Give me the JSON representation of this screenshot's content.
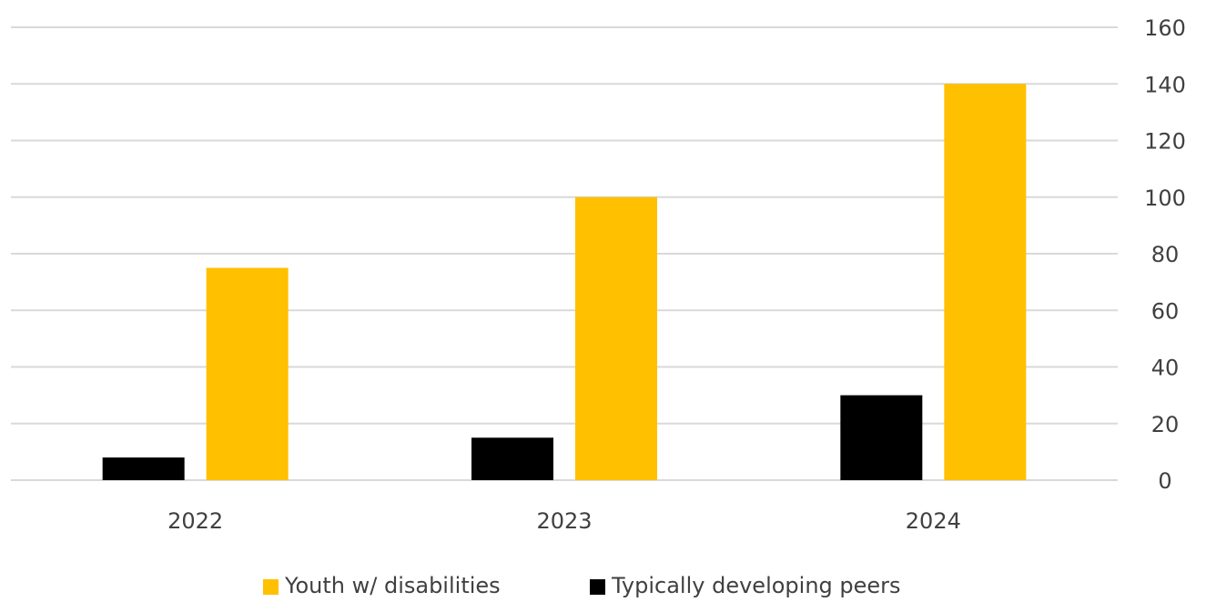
{
  "chart_data": {
    "type": "bar",
    "categories": [
      "2022",
      "2023",
      "2024"
    ],
    "series": [
      {
        "name": "Typically developing peers",
        "values": [
          8,
          15,
          30
        ],
        "color": "#000000"
      },
      {
        "name": "Youth w/ disabilities",
        "values": [
          75,
          100,
          140
        ],
        "color": "#FFC000"
      }
    ],
    "legend_order": [
      "Youth w/ disabilities",
      "Typically developing peers"
    ],
    "ylim": [
      0,
      160
    ],
    "yticks": [
      0,
      20,
      40,
      60,
      80,
      100,
      120,
      140,
      160
    ],
    "y_axis_side": "right",
    "grid": true,
    "grid_color": "#d9d9d9",
    "legend_position": "bottom-center",
    "title": "",
    "xlabel": "",
    "ylabel": ""
  }
}
